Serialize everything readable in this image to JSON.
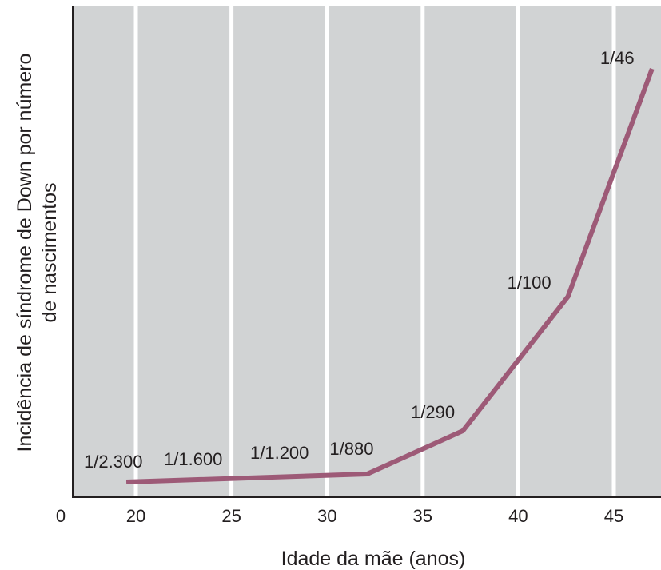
{
  "chart_data": {
    "type": "line",
    "xlabel": "Idade da mãe (anos)",
    "ylabel_line1": "Incidência de síndrome de Down por número",
    "ylabel_line2": "de nascimentos",
    "xlim": [
      0,
      47
    ],
    "x_ticks": [
      "0",
      "20",
      "25",
      "30",
      "35",
      "40",
      "45"
    ],
    "x_tick_values": [
      0,
      20,
      25,
      30,
      35,
      40,
      45
    ],
    "grid": "vertical white lines at 20, 25, 30, 35, 40, 45",
    "colors": {
      "plot_background": "#d1d3d4",
      "line": "#9d5a77",
      "grid": "#ffffff",
      "text": "#231f20"
    },
    "series": [
      {
        "x": [
          19.5,
          32.1,
          37.1,
          42.6,
          47
        ],
        "y": [
          0.000435,
          0.001136,
          0.003448,
          0.01,
          0.021739
        ],
        "labels": [
          "1/2.300",
          "1/880",
          "1/290",
          "1/100",
          "1/46"
        ]
      }
    ],
    "annotations": [
      "1/1.600",
      "1/1.200"
    ]
  }
}
